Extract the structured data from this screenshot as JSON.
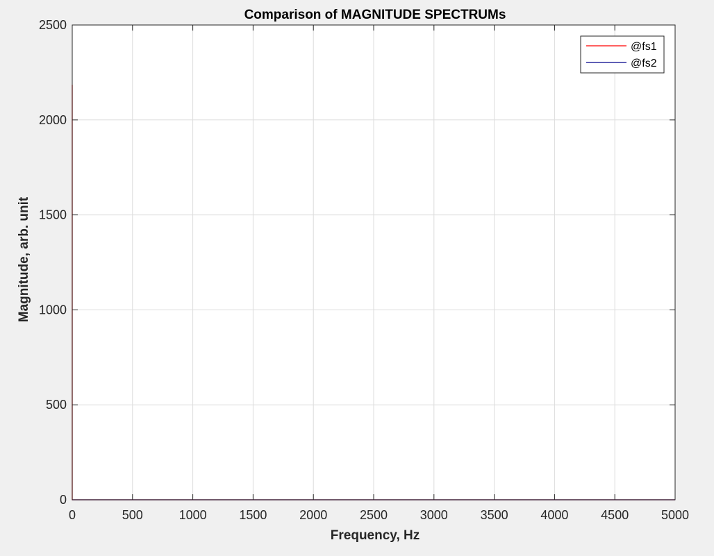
{
  "chart_data": {
    "type": "line",
    "title": "Comparison of MAGNITUDE SPECTRUMs",
    "xlabel": "Frequency, Hz",
    "ylabel": "Magnitude, arb. unit",
    "xlim": [
      0,
      5000
    ],
    "ylim": [
      0,
      2500
    ],
    "x_ticks": [
      0,
      500,
      1000,
      1500,
      2000,
      2500,
      3000,
      3500,
      4000,
      4500,
      5000
    ],
    "y_ticks": [
      0,
      500,
      1000,
      1500,
      2000,
      2500
    ],
    "grid": true,
    "legend_position": "top-right",
    "series": [
      {
        "name": "@fs1",
        "color": "#ff0000",
        "x": [
          0,
          0,
          0,
          5,
          10,
          5000
        ],
        "y": [
          0,
          2185,
          0,
          0,
          0,
          0
        ]
      },
      {
        "name": "@fs2",
        "color": "#00008b",
        "x": [
          0,
          5000
        ],
        "y": [
          0,
          0
        ]
      }
    ]
  }
}
